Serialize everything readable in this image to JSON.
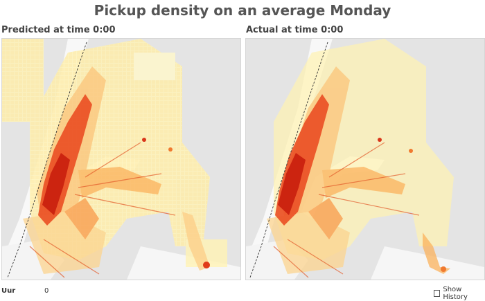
{
  "title": "Pickup density on an average Monday",
  "panels": [
    {
      "label": "Predicted at time 0:00"
    },
    {
      "label": "Actual at time 0:00"
    }
  ],
  "footer": {
    "hour_label": "Uur",
    "hour_value": "0",
    "show_history_label": "Show History",
    "show_history_checked": false
  },
  "colors": {
    "land": "#e2e2e2",
    "water": "#f7f7f7",
    "low_density": "#fff3b8",
    "mid_density": "#fbb25c",
    "high_density": "#e8361c",
    "peak_density": "#c81d0e"
  }
}
